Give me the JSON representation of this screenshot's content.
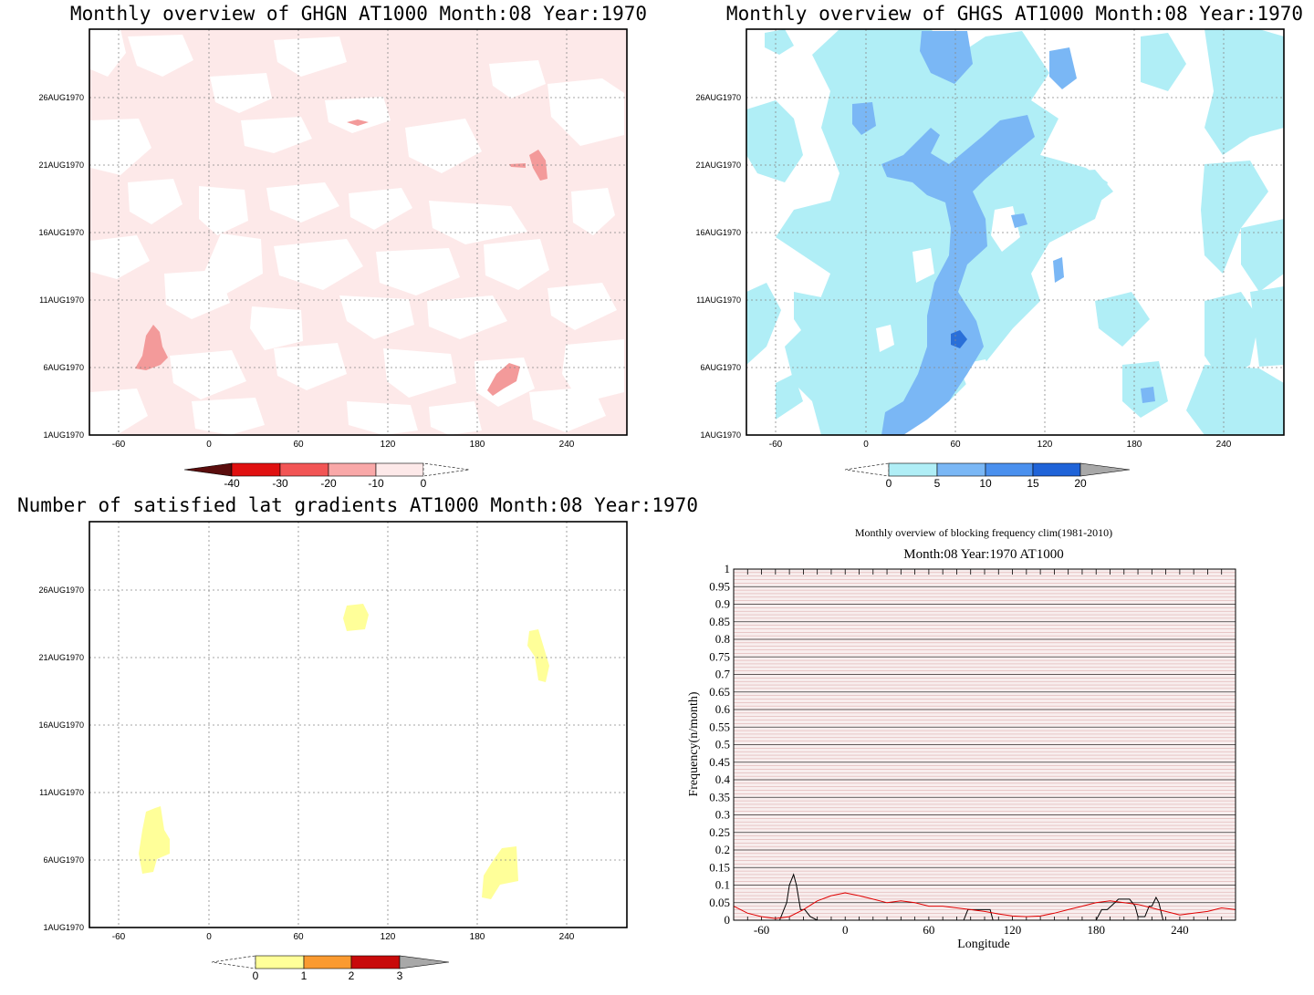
{
  "panels": {
    "ghgn": {
      "title": "Monthly overview of GHGN AT1000 Month:08 Year:1970",
      "y_ticks": [
        "26AUG1970",
        "21AUG1970",
        "16AUG1970",
        "11AUG1970",
        "6AUG1970",
        "1AUG1970"
      ],
      "x_ticks": [
        "-60",
        "0",
        "60",
        "120",
        "180",
        "240"
      ],
      "colorbar": {
        "labels": [
          "-40",
          "-30",
          "-20",
          "-10",
          "0"
        ],
        "colors": [
          "#5a0d0d",
          "#e01010",
          "#f25555",
          "#f9a8a8",
          "#fde9e9"
        ]
      },
      "fill_color": "#fde9e9",
      "patch_color": "#f39a9a"
    },
    "ghgs": {
      "title": "Monthly overview of GHGS AT1000 Month:08 Year:1970",
      "y_ticks": [
        "26AUG1970",
        "21AUG1970",
        "16AUG1970",
        "11AUG1970",
        "6AUG1970",
        "1AUG1970"
      ],
      "x_ticks": [
        "-60",
        "0",
        "60",
        "120",
        "180",
        "240"
      ],
      "colorbar": {
        "labels": [
          "0",
          "5",
          "10",
          "15",
          "20"
        ],
        "colors": [
          "#b0eef6",
          "#7ab7f5",
          "#4a90ee",
          "#1f63d8",
          "#a8a8a8"
        ]
      },
      "light_color": "#b0eef6",
      "mid_color": "#7ab7f5",
      "dark_color": "#2a6fd8"
    },
    "lat": {
      "title": "Number of satisfied lat gradients AT1000 Month:08 Year:1970",
      "y_ticks": [
        "26AUG1970",
        "21AUG1970",
        "16AUG1970",
        "11AUG1970",
        "6AUG1970",
        "1AUG1970"
      ],
      "x_ticks": [
        "-60",
        "0",
        "60",
        "120",
        "180",
        "240"
      ],
      "colorbar": {
        "labels": [
          "0",
          "1",
          "2",
          "3"
        ],
        "colors": [
          "#ffff99",
          "#fa9a30",
          "#c80a0a",
          "#a8a8a8"
        ]
      },
      "patch_color": "#ffff99"
    },
    "blocking": {
      "title": "Monthly overview of blocking frequency clim(1981-2010)",
      "subtitle": "Month:08 Year:1970  AT1000",
      "xlabel": "Longitude",
      "ylabel": "Frequency(n/month)",
      "y_ticks": [
        "0",
        "0.05",
        "0.1",
        "0.15",
        "0.2",
        "0.25",
        "0.3",
        "0.35",
        "0.4",
        "0.45",
        "0.5",
        "0.55",
        "0.6",
        "0.65",
        "0.7",
        "0.75",
        "0.8",
        "0.85",
        "0.9",
        "0.95",
        "1"
      ],
      "x_ticks": [
        "-60",
        "0",
        "60",
        "120",
        "180",
        "240"
      ]
    }
  },
  "chart_data": [
    {
      "type": "heatmap",
      "title": "Monthly overview of GHGN AT1000 Month:08 Year:1970",
      "x_axis": "longitude",
      "xlim": [
        -80,
        280
      ],
      "y_axis": "date",
      "ylim": [
        "1AUG1970",
        "31AUG1970"
      ],
      "contour_levels": [
        -40,
        -30,
        -20,
        -10,
        0
      ],
      "grid": true
    },
    {
      "type": "heatmap",
      "title": "Monthly overview of GHGS AT1000 Month:08 Year:1970",
      "x_axis": "longitude",
      "xlim": [
        -80,
        280
      ],
      "y_axis": "date",
      "ylim": [
        "1AUG1970",
        "31AUG1970"
      ],
      "contour_levels": [
        0,
        5,
        10,
        15,
        20
      ],
      "grid": true
    },
    {
      "type": "heatmap",
      "title": "Number of satisfied lat gradients AT1000 Month:08 Year:1970",
      "x_axis": "longitude",
      "xlim": [
        -80,
        280
      ],
      "y_axis": "date",
      "ylim": [
        "1AUG1970",
        "31AUG1970"
      ],
      "contour_levels": [
        0,
        1,
        2,
        3
      ],
      "grid": true
    },
    {
      "type": "line",
      "title": "Monthly overview of blocking frequency clim(1981-2010)",
      "xlabel": "Longitude",
      "ylabel": "Frequency(n/month)",
      "xlim": [
        -80,
        280
      ],
      "ylim": [
        0,
        1
      ],
      "series": [
        {
          "color": "#000000",
          "x": [
            -80,
            -47,
            -45,
            -42,
            -40,
            -37,
            -35,
            -32,
            -29,
            -25,
            -20,
            0,
            60,
            85,
            88,
            90,
            95,
            100,
            104,
            106,
            120,
            180,
            184,
            188,
            192,
            196,
            200,
            204,
            208,
            210,
            215,
            218,
            220,
            223,
            225,
            228,
            280
          ],
          "y": [
            0,
            0,
            0.02,
            0.05,
            0.1,
            0.13,
            0.1,
            0.03,
            0.03,
            0.01,
            0,
            0,
            0,
            0,
            0.03,
            0.03,
            0.03,
            0.03,
            0.03,
            0,
            0,
            0,
            0.03,
            0.03,
            0.045,
            0.06,
            0.06,
            0.06,
            0.04,
            0.01,
            0.01,
            0.04,
            0.04,
            0.065,
            0.05,
            0,
            0
          ]
        },
        {
          "color": "#e00000",
          "x": [
            -80,
            -70,
            -60,
            -50,
            -40,
            -30,
            -20,
            -10,
            0,
            10,
            20,
            30,
            40,
            50,
            60,
            70,
            80,
            90,
            100,
            110,
            120,
            130,
            140,
            150,
            160,
            170,
            180,
            190,
            200,
            210,
            220,
            230,
            240,
            250,
            260,
            270,
            280
          ],
          "y": [
            0.04,
            0.02,
            0.01,
            0.005,
            0.01,
            0.03,
            0.055,
            0.07,
            0.078,
            0.07,
            0.06,
            0.05,
            0.055,
            0.05,
            0.04,
            0.04,
            0.035,
            0.03,
            0.025,
            0.018,
            0.012,
            0.01,
            0.012,
            0.02,
            0.03,
            0.04,
            0.05,
            0.055,
            0.05,
            0.045,
            0.035,
            0.025,
            0.015,
            0.02,
            0.025,
            0.035,
            0.03
          ]
        }
      ]
    }
  ]
}
